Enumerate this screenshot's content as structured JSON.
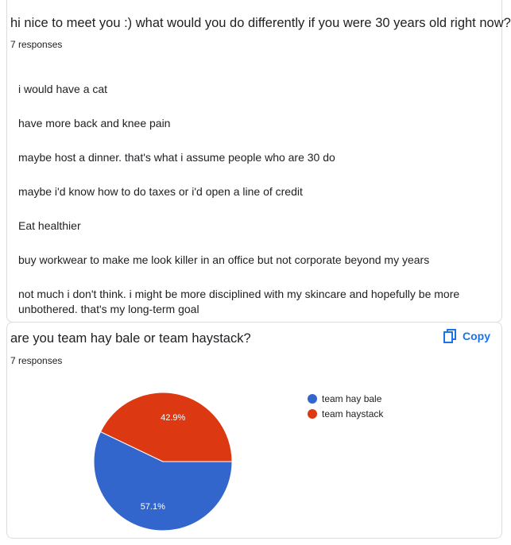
{
  "question1": {
    "title": "hi nice to meet you :) what would you do differently if you were 30 years old right now?",
    "responses": "7 responses",
    "answers": [
      "i would have a cat",
      "have more back and knee pain",
      "maybe host a dinner. that's what i assume people who are 30 do",
      "maybe i'd know how to do taxes or i'd open a line of credit",
      "Eat healthier",
      "buy workwear to make me look killer in an office but not corporate beyond my years",
      "not much i don't think. i might be more disciplined with my skincare and hopefully be more unbothered. that's my long-term goal"
    ]
  },
  "question2": {
    "title": "are you team hay bale or team haystack?",
    "responses": "7 responses",
    "copy_label": "Copy",
    "copy_icon": "copy-icon"
  },
  "chart_data": {
    "type": "pie",
    "categories": [
      "team hay bale",
      "team haystack"
    ],
    "values": [
      57.1,
      42.9
    ],
    "labels": [
      "57.1%",
      "42.9%"
    ],
    "colors": [
      "#3366cc",
      "#dc3912"
    ],
    "legend": "right"
  }
}
